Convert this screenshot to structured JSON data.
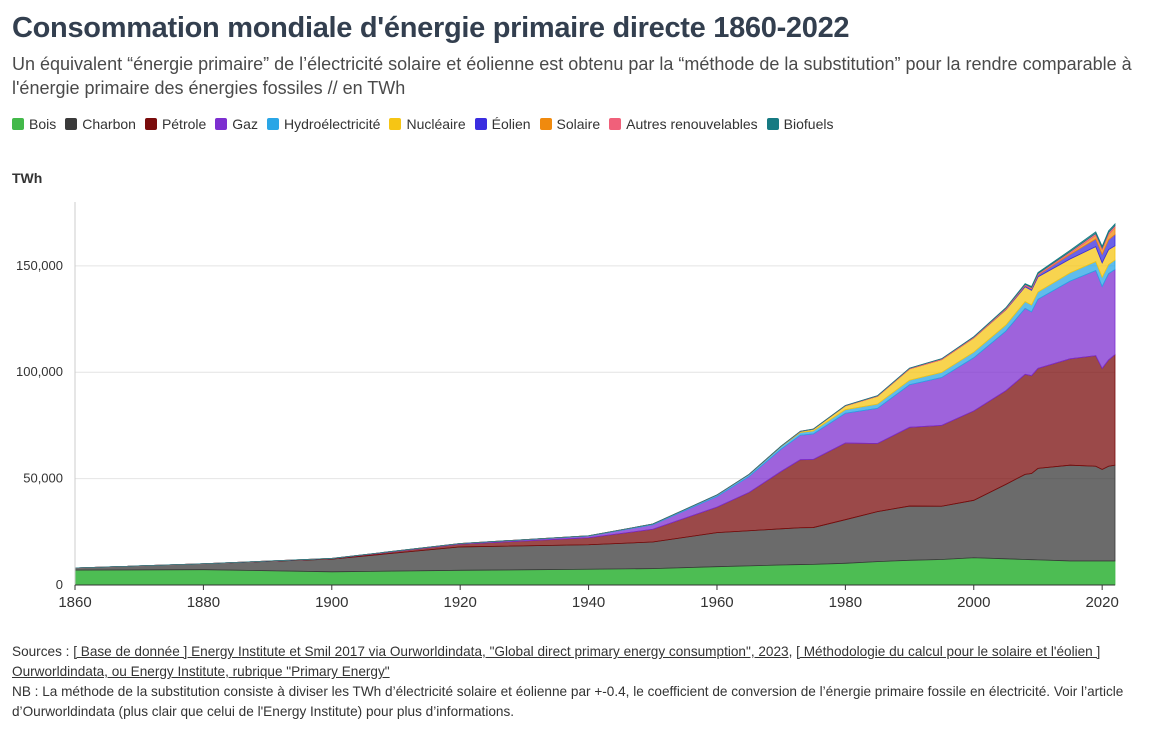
{
  "header": {
    "title": "Consommation mondiale d'énergie primaire directe 1860-2022",
    "subtitle": "Un équivalent “énergie primaire” de l’électricité solaire et éolienne est obtenu par la “méthode de la substitution” pour la rendre comparable à l'énergie primaire des énergies fossiles // en TWh"
  },
  "legend": [
    {
      "label": "Bois",
      "color": "#43b94a"
    },
    {
      "label": "Charbon",
      "color": "#3a3a3a"
    },
    {
      "label": "Pétrole",
      "color": "#7a0c0c"
    },
    {
      "label": "Gaz",
      "color": "#7d2fd0"
    },
    {
      "label": "Hydroélectricité",
      "color": "#2aa6e6"
    },
    {
      "label": "Nucléaire",
      "color": "#f6c514"
    },
    {
      "label": "Éolien",
      "color": "#3a2de0"
    },
    {
      "label": "Solaire",
      "color": "#f08a0e"
    },
    {
      "label": "Autres renouvelables",
      "color": "#f0607a"
    },
    {
      "label": "Biofuels",
      "color": "#167a82"
    }
  ],
  "unit_label": "TWh",
  "chart_data": {
    "type": "area",
    "stacked": true,
    "ylabel": "TWh",
    "xlim": [
      1860,
      2022
    ],
    "ylim": [
      0,
      180000
    ],
    "y_ticks": [
      0,
      50000,
      100000,
      150000
    ],
    "y_tick_labels": [
      "0",
      "50,000",
      "100,000",
      "150,000"
    ],
    "x_ticks": [
      1860,
      1880,
      1900,
      1920,
      1940,
      1960,
      1980,
      2000,
      2020
    ],
    "x_tick_labels": [
      "1860",
      "1880",
      "1900",
      "1920",
      "1940",
      "1960",
      "1980",
      "2000",
      "2020"
    ],
    "grid": "horizontal",
    "x": [
      1860,
      1880,
      1900,
      1920,
      1940,
      1950,
      1960,
      1965,
      1970,
      1973,
      1975,
      1980,
      1985,
      1990,
      1995,
      2000,
      2005,
      2008,
      2009,
      2010,
      2015,
      2019,
      2020,
      2021,
      2022
    ],
    "series": [
      {
        "name": "Bois",
        "values": [
          7000,
          7200,
          6200,
          6900,
          7400,
          7700,
          8600,
          9000,
          9400,
          9600,
          9700,
          10200,
          11000,
          11600,
          12000,
          12800,
          12300,
          12000,
          11900,
          11800,
          11300,
          11300,
          11300,
          11300,
          11300
        ]
      },
      {
        "name": "Charbon",
        "values": [
          1000,
          2800,
          6000,
          11000,
          11500,
          12500,
          16000,
          16500,
          17000,
          17300,
          17300,
          20500,
          23500,
          25500,
          25000,
          27000,
          35000,
          40000,
          40500,
          43000,
          45000,
          44500,
          43000,
          44500,
          45000
        ]
      },
      {
        "name": "Pétrole",
        "values": [
          0,
          0,
          200,
          1300,
          3300,
          6000,
          12000,
          18000,
          27000,
          32000,
          32000,
          36000,
          32000,
          37000,
          38000,
          42000,
          44000,
          47000,
          46000,
          47000,
          50000,
          52000,
          47500,
          50000,
          52000
        ]
      },
      {
        "name": "Gaz",
        "values": [
          0,
          0,
          70,
          250,
          800,
          2100,
          5000,
          7500,
          10500,
          11500,
          12000,
          14000,
          16500,
          20000,
          22500,
          25000,
          28000,
          31000,
          30000,
          32500,
          36500,
          40000,
          38500,
          40500,
          40000
        ]
      },
      {
        "name": "Hydroélectricité",
        "values": [
          0,
          0,
          10,
          60,
          150,
          350,
          700,
          900,
          1150,
          1300,
          1400,
          1700,
          2000,
          2150,
          2400,
          2600,
          2850,
          3150,
          3200,
          3400,
          3900,
          4200,
          4300,
          4300,
          4400
        ]
      },
      {
        "name": "Nucléaire",
        "values": [
          0,
          0,
          0,
          0,
          0,
          0,
          10,
          60,
          200,
          500,
          800,
          1800,
          3700,
          5300,
          6000,
          6700,
          7200,
          7000,
          6900,
          7100,
          6500,
          7000,
          6800,
          7000,
          6700
        ]
      },
      {
        "name": "Éolien",
        "values": [
          0,
          0,
          0,
          0,
          0,
          0,
          0,
          0,
          0,
          0,
          0,
          0,
          0,
          10,
          20,
          80,
          260,
          580,
          720,
          900,
          2100,
          3600,
          4000,
          4600,
          5300
        ]
      },
      {
        "name": "Solaire",
        "values": [
          0,
          0,
          0,
          0,
          0,
          0,
          0,
          0,
          0,
          0,
          0,
          0,
          0,
          0,
          0,
          10,
          30,
          60,
          100,
          120,
          650,
          1800,
          2200,
          2600,
          3300
        ]
      },
      {
        "name": "Autres renouvelables",
        "values": [
          0,
          0,
          0,
          0,
          0,
          0,
          30,
          40,
          60,
          70,
          80,
          150,
          230,
          320,
          380,
          420,
          480,
          520,
          540,
          570,
          700,
          820,
          870,
          900,
          920
        ]
      },
      {
        "name": "Biofuels",
        "values": [
          0,
          0,
          0,
          0,
          0,
          0,
          0,
          0,
          0,
          0,
          0,
          10,
          40,
          60,
          80,
          100,
          200,
          360,
          430,
          470,
          630,
          760,
          700,
          760,
          780
        ]
      }
    ]
  },
  "footer": {
    "sources_prefix": "Sources : ",
    "link1": "[ Base de donnée ] Energy Institute et Smil 2017 via Ourworldindata, \"Global direct primary energy consumption\", 2023",
    "sep": ", ",
    "link2": "[ Méthodologie du calcul pour le solaire et l'éolien ] Ourworldindata, ou Energy Institute, rubrique \"Primary Energy\"",
    "nb": "NB : La méthode de la substitution consiste à diviser les TWh d’électricité solaire et éolienne par +-0.4, le coefficient de conversion de l’énergie primaire fossile en électricité. Voir l’article d’Ourworldindata (plus clair que celui de l'Energy Institute) pour plus d’informations."
  }
}
